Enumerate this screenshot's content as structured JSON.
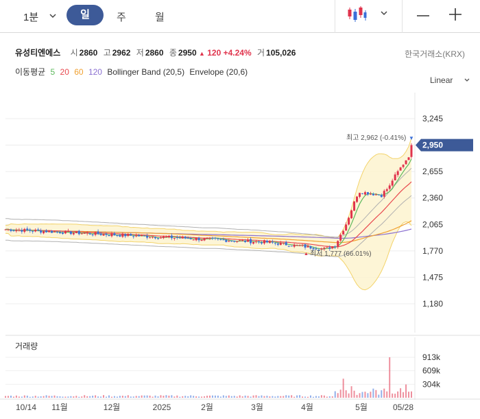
{
  "toolbar": {
    "interval": "1분",
    "tabs": [
      "일",
      "주",
      "월"
    ],
    "active_tab": "일"
  },
  "quote": {
    "name": "유성티엔에스",
    "open_label": "시",
    "open": "2860",
    "high_label": "고",
    "high": "2962",
    "low_label": "저",
    "low": "2860",
    "close_label": "종",
    "close": "2950",
    "change": "120",
    "change_pct": "+4.24%",
    "volume_label": "거",
    "volume": "105,026",
    "exchange": "한국거래소(KRX)"
  },
  "indicators": {
    "ma_label": "이동평균",
    "ma_periods": [
      "5",
      "20",
      "60",
      "120"
    ],
    "ma_colors": [
      "#5cb85c",
      "#e8484e",
      "#f0a030",
      "#8a6fd0"
    ],
    "bollinger": "Bollinger Band (20,5)",
    "envelope": "Envelope (20,6)"
  },
  "scale_mode": "Linear",
  "price_axis": {
    "ticks": [
      "3,245",
      "2,950",
      "2,655",
      "2,360",
      "2,065",
      "1,770",
      "1,475",
      "1,180"
    ],
    "tick_values": [
      3245,
      2950,
      2655,
      2360,
      2065,
      1770,
      1475,
      1180
    ],
    "current_price": "2,950",
    "current_value": 2950
  },
  "annotations": {
    "high_text": "최고 2,962 (-0.41%)",
    "high_value": 2962,
    "low_text": "최저 1,777 (66.01%)",
    "low_value": 1777
  },
  "volume_panel": {
    "title": "거래량",
    "ticks": [
      "913k",
      "609k",
      "304k"
    ],
    "tick_values": [
      913,
      609,
      304
    ]
  },
  "time_axis": [
    "10/14",
    "11월",
    "12월",
    "2025",
    "2월",
    "3월",
    "4월",
    "5월",
    "05/28"
  ],
  "colors": {
    "up": "#e0334c",
    "down": "#3a6fd8",
    "accent": "#3d5a98",
    "band_fill": "#fdf3cf",
    "band_line": "#f3d36a"
  }
}
